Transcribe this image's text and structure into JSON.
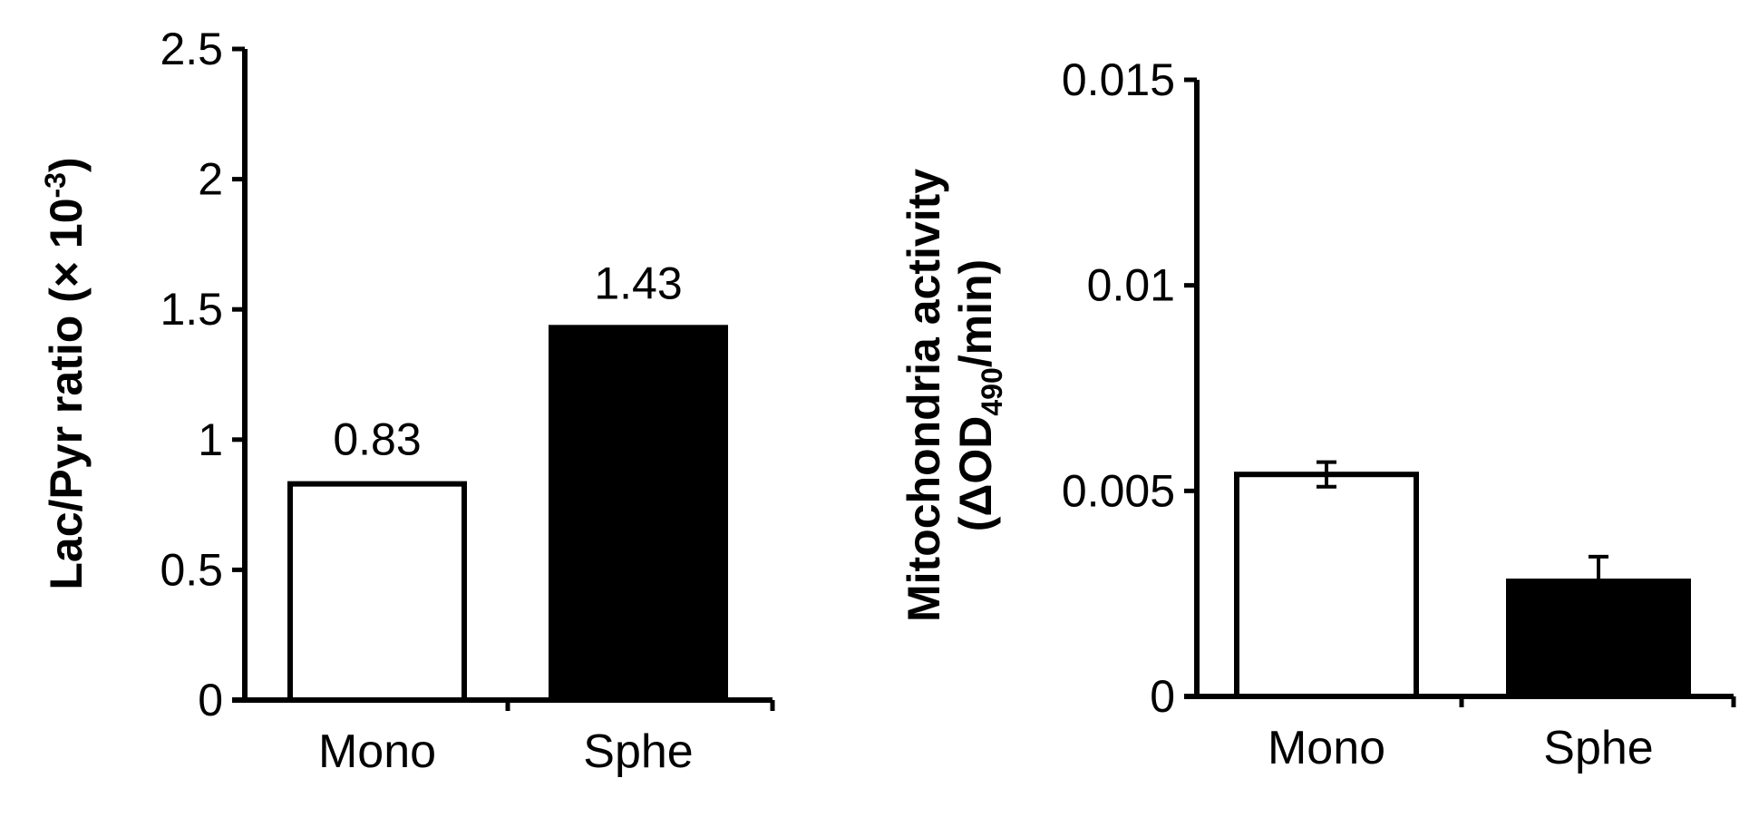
{
  "chart_data": [
    {
      "type": "bar",
      "categories": [
        "Mono",
        "Sphe"
      ],
      "values": [
        0.83,
        1.43
      ],
      "data_labels": [
        "0.83",
        "1.43"
      ],
      "ylabel": "Lac/Pyr ratio (× 10-3)",
      "ylim": [
        0,
        2.5
      ],
      "yticks": [
        0,
        0.5,
        1,
        1.5,
        2,
        2.5
      ],
      "ytick_labels": [
        "0",
        "0.5",
        "1",
        "1.5",
        "2",
        "2.5"
      ],
      "bar_colors": [
        "#ffffff",
        "#000000"
      ],
      "grid": false
    },
    {
      "type": "bar",
      "categories": [
        "Mono",
        "Sphe"
      ],
      "values": [
        0.0054,
        0.0028
      ],
      "error": [
        0.0003,
        0.0006
      ],
      "ylabel_line1": "Mitochondria activity",
      "ylabel_line2": "(ΔOD490/min)",
      "ylim": [
        0,
        0.015
      ],
      "yticks": [
        0,
        0.005,
        0.01,
        0.015
      ],
      "ytick_labels": [
        "0",
        "0.005",
        "0.01",
        "0.015"
      ],
      "bar_colors": [
        "#ffffff",
        "#000000"
      ],
      "grid": false
    }
  ]
}
